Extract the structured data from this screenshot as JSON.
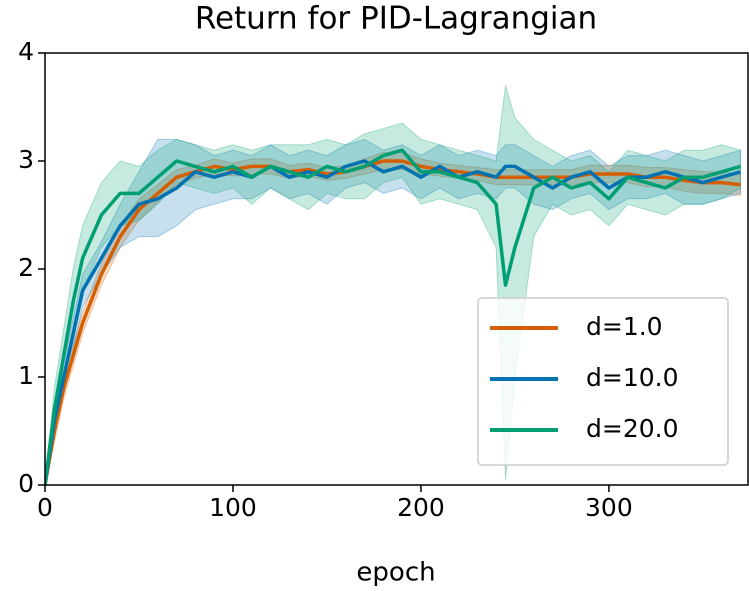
{
  "chart_data": {
    "type": "line",
    "title": "Return for PID-Lagrangian",
    "xlabel": "epoch",
    "x": [
      0,
      5,
      10,
      15,
      20,
      30,
      40,
      50,
      60,
      70,
      80,
      90,
      100,
      110,
      120,
      130,
      140,
      150,
      160,
      170,
      180,
      190,
      200,
      210,
      220,
      230,
      240,
      245,
      250,
      260,
      270,
      280,
      290,
      300,
      310,
      320,
      330,
      340,
      350,
      360,
      370
    ],
    "xlim": [
      0,
      374
    ],
    "ylim": [
      0,
      4
    ],
    "xticks": [
      0,
      100,
      200,
      300
    ],
    "yticks": [
      0,
      1,
      2,
      3,
      4
    ],
    "legend": "lower right",
    "series": [
      {
        "name": "d=1.0",
        "color": "#d55e00",
        "values": [
          0,
          0.5,
          0.9,
          1.2,
          1.5,
          1.95,
          2.3,
          2.55,
          2.7,
          2.85,
          2.9,
          2.95,
          2.92,
          2.95,
          2.95,
          2.9,
          2.92,
          2.88,
          2.9,
          2.95,
          3.0,
          3.0,
          2.95,
          2.92,
          2.9,
          2.88,
          2.85,
          2.85,
          2.85,
          2.85,
          2.85,
          2.85,
          2.88,
          2.88,
          2.88,
          2.85,
          2.85,
          2.82,
          2.8,
          2.8,
          2.78
        ],
        "lower": [
          0,
          0.4,
          0.8,
          1.1,
          1.4,
          1.85,
          2.2,
          2.45,
          2.62,
          2.78,
          2.84,
          2.88,
          2.86,
          2.88,
          2.88,
          2.84,
          2.86,
          2.82,
          2.84,
          2.88,
          2.92,
          2.92,
          2.88,
          2.86,
          2.84,
          2.82,
          2.78,
          2.78,
          2.78,
          2.78,
          2.78,
          2.78,
          2.8,
          2.8,
          2.8,
          2.76,
          2.76,
          2.72,
          2.7,
          2.7,
          2.68
        ],
        "upper": [
          0,
          0.6,
          1.0,
          1.3,
          1.6,
          2.05,
          2.4,
          2.65,
          2.78,
          2.92,
          2.96,
          3.02,
          2.98,
          3.02,
          3.02,
          2.96,
          2.98,
          2.94,
          2.96,
          3.02,
          3.08,
          3.08,
          3.02,
          2.98,
          2.96,
          2.94,
          2.92,
          2.92,
          2.92,
          2.92,
          2.92,
          2.92,
          2.96,
          2.96,
          2.96,
          2.94,
          2.94,
          2.92,
          2.9,
          2.9,
          2.88
        ]
      },
      {
        "name": "d=10.0",
        "color": "#0072b2",
        "values": [
          0,
          0.6,
          1.0,
          1.4,
          1.8,
          2.1,
          2.4,
          2.6,
          2.65,
          2.75,
          2.9,
          2.85,
          2.9,
          2.85,
          2.95,
          2.85,
          2.9,
          2.85,
          2.95,
          3.0,
          2.9,
          2.95,
          2.85,
          2.95,
          2.85,
          2.9,
          2.85,
          2.95,
          2.95,
          2.85,
          2.75,
          2.85,
          2.9,
          2.75,
          2.85,
          2.85,
          2.9,
          2.85,
          2.8,
          2.85,
          2.9
        ],
        "lower": [
          0,
          0.5,
          0.85,
          1.25,
          1.65,
          1.95,
          2.2,
          2.3,
          2.3,
          2.4,
          2.55,
          2.6,
          2.65,
          2.65,
          2.75,
          2.65,
          2.7,
          2.6,
          2.75,
          2.8,
          2.7,
          2.75,
          2.65,
          2.75,
          2.65,
          2.7,
          2.65,
          2.75,
          2.75,
          2.6,
          2.55,
          2.65,
          2.7,
          2.55,
          2.65,
          2.65,
          2.7,
          2.6,
          2.6,
          2.65,
          2.7
        ],
        "upper": [
          0,
          0.7,
          1.15,
          1.55,
          1.95,
          2.25,
          2.6,
          2.9,
          3.2,
          3.2,
          3.15,
          3.05,
          3.1,
          3.05,
          3.15,
          3.05,
          3.1,
          3.05,
          3.15,
          3.2,
          3.1,
          3.15,
          3.05,
          3.15,
          3.05,
          3.1,
          3.05,
          3.15,
          3.15,
          3.05,
          2.95,
          3.05,
          3.1,
          2.95,
          3.05,
          3.05,
          3.1,
          3.05,
          3.0,
          3.05,
          3.1
        ]
      },
      {
        "name": "d=20.0",
        "color": "#009e73",
        "values": [
          0,
          0.7,
          1.2,
          1.7,
          2.1,
          2.5,
          2.7,
          2.7,
          2.85,
          3.0,
          2.95,
          2.9,
          2.95,
          2.85,
          2.95,
          2.9,
          2.85,
          2.95,
          2.9,
          2.95,
          3.05,
          3.1,
          2.9,
          2.9,
          2.85,
          2.8,
          2.6,
          1.85,
          2.2,
          2.75,
          2.85,
          2.75,
          2.8,
          2.65,
          2.85,
          2.8,
          2.75,
          2.85,
          2.85,
          2.9,
          2.95
        ],
        "lower": [
          0,
          0.5,
          0.95,
          1.4,
          1.8,
          2.2,
          2.4,
          2.45,
          2.6,
          2.8,
          2.75,
          2.7,
          2.75,
          2.6,
          2.75,
          2.65,
          2.55,
          2.7,
          2.65,
          2.65,
          2.8,
          2.85,
          2.6,
          2.65,
          2.6,
          2.55,
          2.2,
          0.05,
          1.0,
          2.3,
          2.6,
          2.5,
          2.55,
          2.4,
          2.6,
          2.55,
          2.5,
          2.6,
          2.6,
          2.65,
          2.75
        ],
        "upper": [
          0,
          0.9,
          1.45,
          2.0,
          2.4,
          2.8,
          3.0,
          2.95,
          3.1,
          3.2,
          3.15,
          3.1,
          3.15,
          3.1,
          3.15,
          3.15,
          3.15,
          3.2,
          3.15,
          3.25,
          3.3,
          3.35,
          3.2,
          3.15,
          3.1,
          3.05,
          3.0,
          3.7,
          3.4,
          3.2,
          3.1,
          3.0,
          3.05,
          2.9,
          3.1,
          3.05,
          3.0,
          3.1,
          3.1,
          3.15,
          3.1
        ]
      }
    ]
  }
}
